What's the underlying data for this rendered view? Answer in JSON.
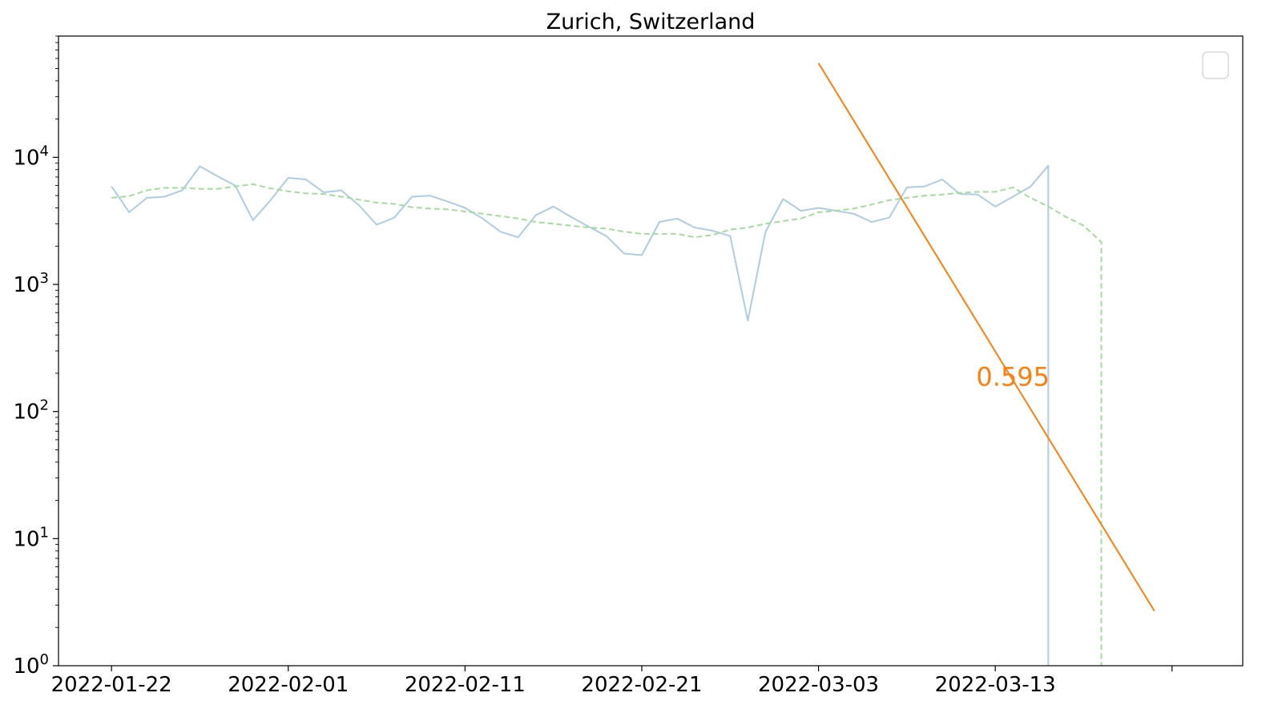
{
  "chart_data": {
    "type": "line",
    "title": "Zurich, Switzerland",
    "xlabel": "",
    "ylabel": "",
    "yscale": "log",
    "ylim": [
      1,
      90000
    ],
    "xlim": [
      "2022-01-19",
      "2022-03-27"
    ],
    "x_tick_labels": [
      "2022-01-22",
      "2022-02-01",
      "2022-02-11",
      "2022-02-21",
      "2022-03-03",
      "2022-03-13",
      ""
    ],
    "x_tick_dates": [
      "2022-01-22",
      "2022-02-01",
      "2022-02-11",
      "2022-02-21",
      "2022-03-03",
      "2022-03-13",
      "2022-03-23"
    ],
    "y_ticks": [
      {
        "value": 1,
        "base": "10",
        "exp": "0"
      },
      {
        "value": 10,
        "base": "10",
        "exp": "1"
      },
      {
        "value": 100,
        "base": "10",
        "exp": "2"
      },
      {
        "value": 1000,
        "base": "10",
        "exp": "3"
      },
      {
        "value": 10000,
        "base": "10",
        "exp": "4"
      }
    ],
    "grid": false,
    "legend": "top-right (empty)",
    "series": [
      {
        "style": "solid",
        "color": "#aecde3",
        "points": [
          [
            "2022-01-22",
            5900
          ],
          [
            "2022-01-23",
            3700
          ],
          [
            "2022-01-24",
            4800
          ],
          [
            "2022-01-25",
            4900
          ],
          [
            "2022-01-26",
            5500
          ],
          [
            "2022-01-27",
            8500
          ],
          [
            "2022-01-28",
            7100
          ],
          [
            "2022-01-29",
            6000
          ],
          [
            "2022-01-30",
            3200
          ],
          [
            "2022-01-31",
            4600
          ],
          [
            "2022-02-01",
            6900
          ],
          [
            "2022-02-02",
            6700
          ],
          [
            "2022-02-03",
            5300
          ],
          [
            "2022-02-04",
            5500
          ],
          [
            "2022-02-05",
            4200
          ],
          [
            "2022-02-06",
            2950
          ],
          [
            "2022-02-07",
            3350
          ],
          [
            "2022-02-08",
            4900
          ],
          [
            "2022-02-09",
            5000
          ],
          [
            "2022-02-10",
            4500
          ],
          [
            "2022-02-11",
            4000
          ],
          [
            "2022-02-12",
            3300
          ],
          [
            "2022-02-13",
            2600
          ],
          [
            "2022-02-14",
            2350
          ],
          [
            "2022-02-15",
            3500
          ],
          [
            "2022-02-16",
            4100
          ],
          [
            "2022-02-17",
            3400
          ],
          [
            "2022-02-18",
            2850
          ],
          [
            "2022-02-19",
            2400
          ],
          [
            "2022-02-20",
            1750
          ],
          [
            "2022-02-21",
            1700
          ],
          [
            "2022-02-22",
            3100
          ],
          [
            "2022-02-23",
            3300
          ],
          [
            "2022-02-24",
            2800
          ],
          [
            "2022-02-25",
            2650
          ],
          [
            "2022-02-26",
            2400
          ],
          [
            "2022-02-27",
            520
          ],
          [
            "2022-02-28",
            2600
          ],
          [
            "2022-03-01",
            4700
          ],
          [
            "2022-03-02",
            3800
          ],
          [
            "2022-03-03",
            4000
          ],
          [
            "2022-03-04",
            3800
          ],
          [
            "2022-03-05",
            3600
          ],
          [
            "2022-03-06",
            3100
          ],
          [
            "2022-03-07",
            3350
          ],
          [
            "2022-03-08",
            5800
          ],
          [
            "2022-03-09",
            5900
          ],
          [
            "2022-03-10",
            6700
          ],
          [
            "2022-03-11",
            5150
          ],
          [
            "2022-03-12",
            5100
          ],
          [
            "2022-03-13",
            4100
          ],
          [
            "2022-03-14",
            4900
          ],
          [
            "2022-03-15",
            5900
          ],
          [
            "2022-03-16",
            8600
          ],
          [
            "2022-03-16",
            1
          ]
        ]
      },
      {
        "style": "dashed",
        "color": "#a6dba0",
        "points": [
          [
            "2022-01-22",
            4800
          ],
          [
            "2022-01-23",
            4950
          ],
          [
            "2022-01-24",
            5500
          ],
          [
            "2022-01-25",
            5750
          ],
          [
            "2022-01-26",
            5750
          ],
          [
            "2022-01-27",
            5650
          ],
          [
            "2022-01-28",
            5650
          ],
          [
            "2022-01-29",
            5900
          ],
          [
            "2022-01-30",
            6150
          ],
          [
            "2022-01-31",
            5700
          ],
          [
            "2022-02-01",
            5400
          ],
          [
            "2022-02-02",
            5200
          ],
          [
            "2022-02-03",
            5150
          ],
          [
            "2022-02-04",
            4900
          ],
          [
            "2022-02-05",
            4650
          ],
          [
            "2022-02-06",
            4400
          ],
          [
            "2022-02-07",
            4300
          ],
          [
            "2022-02-08",
            4050
          ],
          [
            "2022-02-09",
            3950
          ],
          [
            "2022-02-10",
            3900
          ],
          [
            "2022-02-11",
            3750
          ],
          [
            "2022-02-12",
            3600
          ],
          [
            "2022-02-13",
            3450
          ],
          [
            "2022-02-14",
            3300
          ],
          [
            "2022-02-15",
            3100
          ],
          [
            "2022-02-16",
            3000
          ],
          [
            "2022-02-17",
            2900
          ],
          [
            "2022-02-18",
            2800
          ],
          [
            "2022-02-19",
            2750
          ],
          [
            "2022-02-20",
            2600
          ],
          [
            "2022-02-21",
            2500
          ],
          [
            "2022-02-22",
            2500
          ],
          [
            "2022-02-23",
            2500
          ],
          [
            "2022-02-24",
            2350
          ],
          [
            "2022-02-25",
            2450
          ],
          [
            "2022-02-26",
            2700
          ],
          [
            "2022-02-27",
            2800
          ],
          [
            "2022-02-28",
            3000
          ],
          [
            "2022-03-01",
            3150
          ],
          [
            "2022-03-02",
            3300
          ],
          [
            "2022-03-03",
            3700
          ],
          [
            "2022-03-04",
            3800
          ],
          [
            "2022-03-05",
            3950
          ],
          [
            "2022-03-06",
            4250
          ],
          [
            "2022-03-07",
            4600
          ],
          [
            "2022-03-08",
            4800
          ],
          [
            "2022-03-09",
            5000
          ],
          [
            "2022-03-10",
            5100
          ],
          [
            "2022-03-11",
            5250
          ],
          [
            "2022-03-12",
            5350
          ],
          [
            "2022-03-13",
            5350
          ],
          [
            "2022-03-14",
            5800
          ],
          [
            "2022-03-15",
            4800
          ],
          [
            "2022-03-16",
            4100
          ],
          [
            "2022-03-17",
            3400
          ],
          [
            "2022-03-18",
            2900
          ],
          [
            "2022-03-19",
            2150
          ],
          [
            "2022-03-19",
            1250
          ],
          [
            "2022-03-19",
            1
          ]
        ]
      },
      {
        "style": "solid",
        "color": "#ff7f0e",
        "points": [
          [
            "2022-03-03",
            55000
          ],
          [
            "2022-03-22",
            2.7
          ]
        ]
      }
    ],
    "annotations": [
      {
        "text": "0.595",
        "x": "2022-03-14",
        "y": 190,
        "color": "#ff7f0e"
      }
    ]
  }
}
